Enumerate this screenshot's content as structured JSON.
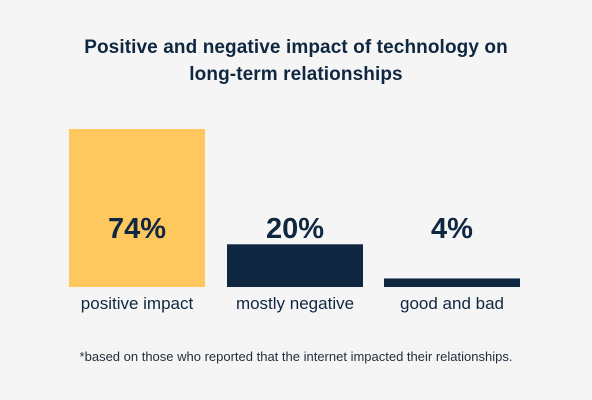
{
  "title_line1": "Positive and negative impact of technology on",
  "title_line2": "long-term relationships",
  "footnote": "*based on those who reported that the internet impacted their relationships.",
  "chart_data": {
    "type": "bar",
    "title": "Positive and negative impact of technology on long-term relationships",
    "categories": [
      "positive impact",
      "mostly negative",
      "good and bad"
    ],
    "values": [
      74,
      20,
      4
    ],
    "value_labels": [
      "74%",
      "20%",
      "4%"
    ],
    "unit": "%",
    "ylim": [
      0,
      74
    ],
    "grid": false,
    "legend": "none",
    "colors": [
      "#ffc85f",
      "#0f2740",
      "#0f2740"
    ]
  }
}
